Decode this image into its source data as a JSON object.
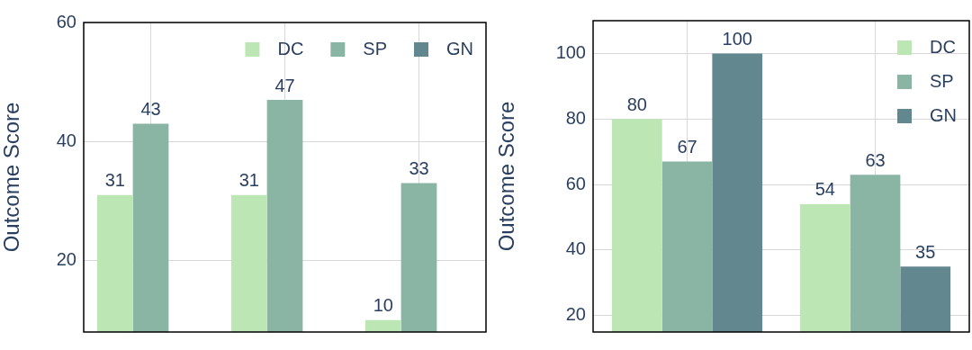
{
  "chart_data": [
    {
      "type": "bar",
      "categories": [
        null,
        null,
        null
      ],
      "ylabel": "Outcome Score",
      "ylim": [
        8,
        60
      ],
      "yticks": [
        20,
        40,
        60
      ],
      "grid": true,
      "legend": "top right",
      "data_labels": true,
      "tick_labels": "y",
      "series": [
        {
          "name": "DC",
          "color": "#bde6b5",
          "values": [
            31,
            31,
            10
          ]
        },
        {
          "name": "SP",
          "color": "#8ab5a4",
          "values": [
            43,
            47,
            33
          ]
        },
        {
          "name": "GN",
          "color": "#62878f",
          "values": [
            null,
            null,
            null
          ]
        }
      ]
    },
    {
      "type": "bar",
      "categories": [
        null,
        null
      ],
      "ylabel": "Outcome Score",
      "ylim": [
        15,
        110
      ],
      "yticks": [
        20,
        40,
        60,
        80,
        100
      ],
      "grid": true,
      "legend": "top right",
      "data_labels": true,
      "tick_labels": "y",
      "series": [
        {
          "name": "DC",
          "color": "#bde6b5",
          "values": [
            80,
            54
          ]
        },
        {
          "name": "SP",
          "color": "#8ab5a4",
          "values": [
            67,
            63
          ]
        },
        {
          "name": "GN",
          "color": "#62878f",
          "values": [
            100,
            35
          ]
        }
      ]
    }
  ]
}
